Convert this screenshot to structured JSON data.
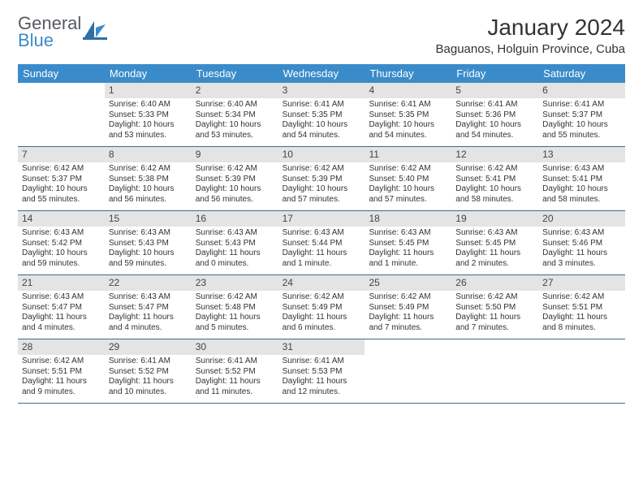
{
  "brand": {
    "part1": "General",
    "part2": "Blue"
  },
  "title": "January 2024",
  "location": "Baguanos, Holguin Province, Cuba",
  "colors": {
    "header_bg": "#3a8bc9",
    "header_text": "#ffffff",
    "daynum_bg": "#e4e4e4",
    "week_border": "#3a6a95",
    "text": "#333333"
  },
  "day_names": [
    "Sunday",
    "Monday",
    "Tuesday",
    "Wednesday",
    "Thursday",
    "Friday",
    "Saturday"
  ],
  "weeks": [
    [
      {
        "n": "",
        "sr": "",
        "ss": "",
        "dl": ""
      },
      {
        "n": "1",
        "sr": "Sunrise: 6:40 AM",
        "ss": "Sunset: 5:33 PM",
        "dl": "Daylight: 10 hours and 53 minutes."
      },
      {
        "n": "2",
        "sr": "Sunrise: 6:40 AM",
        "ss": "Sunset: 5:34 PM",
        "dl": "Daylight: 10 hours and 53 minutes."
      },
      {
        "n": "3",
        "sr": "Sunrise: 6:41 AM",
        "ss": "Sunset: 5:35 PM",
        "dl": "Daylight: 10 hours and 54 minutes."
      },
      {
        "n": "4",
        "sr": "Sunrise: 6:41 AM",
        "ss": "Sunset: 5:35 PM",
        "dl": "Daylight: 10 hours and 54 minutes."
      },
      {
        "n": "5",
        "sr": "Sunrise: 6:41 AM",
        "ss": "Sunset: 5:36 PM",
        "dl": "Daylight: 10 hours and 54 minutes."
      },
      {
        "n": "6",
        "sr": "Sunrise: 6:41 AM",
        "ss": "Sunset: 5:37 PM",
        "dl": "Daylight: 10 hours and 55 minutes."
      }
    ],
    [
      {
        "n": "7",
        "sr": "Sunrise: 6:42 AM",
        "ss": "Sunset: 5:37 PM",
        "dl": "Daylight: 10 hours and 55 minutes."
      },
      {
        "n": "8",
        "sr": "Sunrise: 6:42 AM",
        "ss": "Sunset: 5:38 PM",
        "dl": "Daylight: 10 hours and 56 minutes."
      },
      {
        "n": "9",
        "sr": "Sunrise: 6:42 AM",
        "ss": "Sunset: 5:39 PM",
        "dl": "Daylight: 10 hours and 56 minutes."
      },
      {
        "n": "10",
        "sr": "Sunrise: 6:42 AM",
        "ss": "Sunset: 5:39 PM",
        "dl": "Daylight: 10 hours and 57 minutes."
      },
      {
        "n": "11",
        "sr": "Sunrise: 6:42 AM",
        "ss": "Sunset: 5:40 PM",
        "dl": "Daylight: 10 hours and 57 minutes."
      },
      {
        "n": "12",
        "sr": "Sunrise: 6:42 AM",
        "ss": "Sunset: 5:41 PM",
        "dl": "Daylight: 10 hours and 58 minutes."
      },
      {
        "n": "13",
        "sr": "Sunrise: 6:43 AM",
        "ss": "Sunset: 5:41 PM",
        "dl": "Daylight: 10 hours and 58 minutes."
      }
    ],
    [
      {
        "n": "14",
        "sr": "Sunrise: 6:43 AM",
        "ss": "Sunset: 5:42 PM",
        "dl": "Daylight: 10 hours and 59 minutes."
      },
      {
        "n": "15",
        "sr": "Sunrise: 6:43 AM",
        "ss": "Sunset: 5:43 PM",
        "dl": "Daylight: 10 hours and 59 minutes."
      },
      {
        "n": "16",
        "sr": "Sunrise: 6:43 AM",
        "ss": "Sunset: 5:43 PM",
        "dl": "Daylight: 11 hours and 0 minutes."
      },
      {
        "n": "17",
        "sr": "Sunrise: 6:43 AM",
        "ss": "Sunset: 5:44 PM",
        "dl": "Daylight: 11 hours and 1 minute."
      },
      {
        "n": "18",
        "sr": "Sunrise: 6:43 AM",
        "ss": "Sunset: 5:45 PM",
        "dl": "Daylight: 11 hours and 1 minute."
      },
      {
        "n": "19",
        "sr": "Sunrise: 6:43 AM",
        "ss": "Sunset: 5:45 PM",
        "dl": "Daylight: 11 hours and 2 minutes."
      },
      {
        "n": "20",
        "sr": "Sunrise: 6:43 AM",
        "ss": "Sunset: 5:46 PM",
        "dl": "Daylight: 11 hours and 3 minutes."
      }
    ],
    [
      {
        "n": "21",
        "sr": "Sunrise: 6:43 AM",
        "ss": "Sunset: 5:47 PM",
        "dl": "Daylight: 11 hours and 4 minutes."
      },
      {
        "n": "22",
        "sr": "Sunrise: 6:43 AM",
        "ss": "Sunset: 5:47 PM",
        "dl": "Daylight: 11 hours and 4 minutes."
      },
      {
        "n": "23",
        "sr": "Sunrise: 6:42 AM",
        "ss": "Sunset: 5:48 PM",
        "dl": "Daylight: 11 hours and 5 minutes."
      },
      {
        "n": "24",
        "sr": "Sunrise: 6:42 AM",
        "ss": "Sunset: 5:49 PM",
        "dl": "Daylight: 11 hours and 6 minutes."
      },
      {
        "n": "25",
        "sr": "Sunrise: 6:42 AM",
        "ss": "Sunset: 5:49 PM",
        "dl": "Daylight: 11 hours and 7 minutes."
      },
      {
        "n": "26",
        "sr": "Sunrise: 6:42 AM",
        "ss": "Sunset: 5:50 PM",
        "dl": "Daylight: 11 hours and 7 minutes."
      },
      {
        "n": "27",
        "sr": "Sunrise: 6:42 AM",
        "ss": "Sunset: 5:51 PM",
        "dl": "Daylight: 11 hours and 8 minutes."
      }
    ],
    [
      {
        "n": "28",
        "sr": "Sunrise: 6:42 AM",
        "ss": "Sunset: 5:51 PM",
        "dl": "Daylight: 11 hours and 9 minutes."
      },
      {
        "n": "29",
        "sr": "Sunrise: 6:41 AM",
        "ss": "Sunset: 5:52 PM",
        "dl": "Daylight: 11 hours and 10 minutes."
      },
      {
        "n": "30",
        "sr": "Sunrise: 6:41 AM",
        "ss": "Sunset: 5:52 PM",
        "dl": "Daylight: 11 hours and 11 minutes."
      },
      {
        "n": "31",
        "sr": "Sunrise: 6:41 AM",
        "ss": "Sunset: 5:53 PM",
        "dl": "Daylight: 11 hours and 12 minutes."
      },
      {
        "n": "",
        "sr": "",
        "ss": "",
        "dl": ""
      },
      {
        "n": "",
        "sr": "",
        "ss": "",
        "dl": ""
      },
      {
        "n": "",
        "sr": "",
        "ss": "",
        "dl": ""
      }
    ]
  ]
}
